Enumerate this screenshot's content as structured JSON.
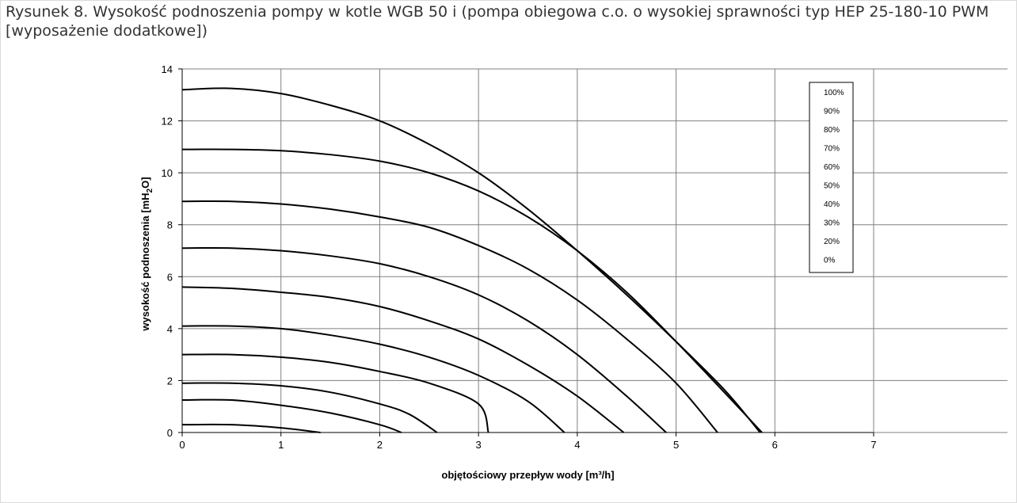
{
  "figure": {
    "caption": "Rysunek 8. Wysokość podnoszenia pompy w kotle WGB 50 i (pompa obiegowa c.o. o wysokiej sprawności typ HEP 25-180-10 PWM [wyposażenie dodatkowe])"
  },
  "chart_data": {
    "type": "line",
    "xlabel": "objętościowy przepływ wody [m³/h]",
    "ylabel_prefix": "wysokość podnoszenia [mH",
    "ylabel_sub": "2",
    "ylabel_suffix": "O]",
    "xlim": [
      0,
      7
    ],
    "ylim": [
      0,
      14
    ],
    "x_ticks": [
      0,
      1,
      2,
      3,
      4,
      5,
      6,
      7
    ],
    "y_ticks": [
      0,
      2,
      4,
      6,
      8,
      10,
      12,
      14
    ],
    "grid": true,
    "legend_position": "top-right",
    "line_color": "#000000",
    "series": [
      {
        "name": "100%",
        "points": [
          [
            0,
            13.2
          ],
          [
            0.5,
            13.25
          ],
          [
            1,
            13.05
          ],
          [
            1.5,
            12.6
          ],
          [
            2,
            12.0
          ],
          [
            2.5,
            11.1
          ],
          [
            3,
            10.0
          ],
          [
            3.5,
            8.6
          ],
          [
            4,
            7.0
          ],
          [
            4.5,
            5.3
          ],
          [
            5,
            3.5
          ],
          [
            5.5,
            1.6
          ],
          [
            5.85,
            0
          ]
        ]
      },
      {
        "name": "90%",
        "points": [
          [
            0,
            10.9
          ],
          [
            0.5,
            10.9
          ],
          [
            1,
            10.85
          ],
          [
            1.5,
            10.7
          ],
          [
            2,
            10.45
          ],
          [
            2.5,
            10.0
          ],
          [
            3,
            9.3
          ],
          [
            3.5,
            8.3
          ],
          [
            4,
            7.0
          ],
          [
            4.5,
            5.4
          ],
          [
            5,
            3.5
          ],
          [
            5.5,
            1.5
          ],
          [
            5.87,
            0
          ]
        ]
      },
      {
        "name": "80%",
        "points": [
          [
            0,
            8.9
          ],
          [
            0.5,
            8.9
          ],
          [
            1,
            8.8
          ],
          [
            1.5,
            8.6
          ],
          [
            2,
            8.3
          ],
          [
            2.5,
            7.9
          ],
          [
            3,
            7.2
          ],
          [
            3.5,
            6.3
          ],
          [
            4,
            5.1
          ],
          [
            4.5,
            3.6
          ],
          [
            5,
            1.9
          ],
          [
            5.42,
            0
          ]
        ]
      },
      {
        "name": "70%",
        "points": [
          [
            0,
            7.1
          ],
          [
            0.5,
            7.1
          ],
          [
            1,
            7.0
          ],
          [
            1.5,
            6.8
          ],
          [
            2,
            6.5
          ],
          [
            2.5,
            6.0
          ],
          [
            3,
            5.3
          ],
          [
            3.5,
            4.3
          ],
          [
            4,
            3.0
          ],
          [
            4.5,
            1.4
          ],
          [
            4.9,
            0
          ]
        ]
      },
      {
        "name": "60%",
        "points": [
          [
            0,
            5.6
          ],
          [
            0.5,
            5.55
          ],
          [
            1,
            5.4
          ],
          [
            1.5,
            5.2
          ],
          [
            2,
            4.85
          ],
          [
            2.5,
            4.3
          ],
          [
            3,
            3.6
          ],
          [
            3.5,
            2.6
          ],
          [
            4,
            1.4
          ],
          [
            4.47,
            0
          ]
        ]
      },
      {
        "name": "50%",
        "points": [
          [
            0,
            4.1
          ],
          [
            0.5,
            4.1
          ],
          [
            1,
            4.0
          ],
          [
            1.5,
            3.75
          ],
          [
            2,
            3.4
          ],
          [
            2.5,
            2.9
          ],
          [
            3,
            2.2
          ],
          [
            3.5,
            1.2
          ],
          [
            3.87,
            0
          ]
        ]
      },
      {
        "name": "40%",
        "points": [
          [
            0,
            3.0
          ],
          [
            0.5,
            3.0
          ],
          [
            1,
            2.9
          ],
          [
            1.5,
            2.7
          ],
          [
            2,
            2.35
          ],
          [
            2.5,
            1.9
          ],
          [
            3,
            1.1
          ],
          [
            3.1,
            0
          ]
        ]
      },
      {
        "name": "30%",
        "points": [
          [
            0,
            1.9
          ],
          [
            0.5,
            1.9
          ],
          [
            1,
            1.8
          ],
          [
            1.5,
            1.55
          ],
          [
            2,
            1.1
          ],
          [
            2.3,
            0.7
          ],
          [
            2.58,
            0
          ]
        ]
      },
      {
        "name": "20%",
        "points": [
          [
            0,
            1.25
          ],
          [
            0.5,
            1.25
          ],
          [
            1,
            1.05
          ],
          [
            1.5,
            0.75
          ],
          [
            2,
            0.3
          ],
          [
            2.22,
            0
          ]
        ]
      },
      {
        "name": "0%",
        "points": [
          [
            0,
            0.3
          ],
          [
            0.5,
            0.3
          ],
          [
            1,
            0.18
          ],
          [
            1.4,
            0
          ]
        ]
      }
    ],
    "legend_entries": [
      "100%",
      "90%",
      "80%",
      "70%",
      "60%",
      "50%",
      "40%",
      "30%",
      "20%",
      "0%"
    ]
  }
}
